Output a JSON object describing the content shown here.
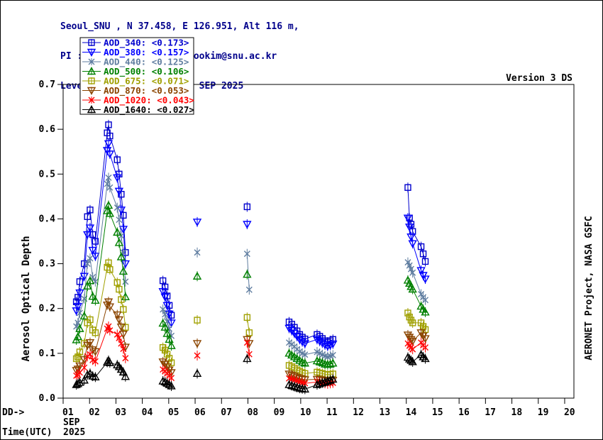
{
  "header": {
    "lines": [
      "Seoul_SNU , N 37.458, E 126.951, Alt 116 m,",
      "PI : Sang-Woo_Kim, sangwookim@snu.ac.kr",
      "Level 1.5 AOD; Data from SEP 2025"
    ],
    "color": "#00008b"
  },
  "chart_data": {
    "type": "scatter",
    "version_label": "Version 3 DS",
    "ylabel": "Aerosol Optical Depth",
    "credit": "AERONET Project, NASA GSFC",
    "x_prefix": "DD->",
    "time_label": "Time(UTC)",
    "month": "SEP",
    "year": "2025",
    "x_ticks": [
      "01",
      "02",
      "03",
      "04",
      "05",
      "06",
      "07",
      "08",
      "09",
      "10",
      "11",
      "12",
      "13",
      "14",
      "15",
      "16",
      "17",
      "18",
      "19",
      "20"
    ],
    "y_ticks": [
      "0.0",
      "0.1",
      "0.2",
      "0.3",
      "0.4",
      "0.5",
      "0.6",
      "0.7"
    ],
    "x_range": [
      1,
      20.35
    ],
    "y_range": [
      0,
      0.7
    ],
    "grid": false,
    "legend_position": "top-left",
    "series": [
      {
        "name": "AOD_340",
        "mean": "0.173",
        "label": "AOD_340: <0.173>",
        "color": "#0000cd",
        "marker": "square"
      },
      {
        "name": "AOD_380",
        "mean": "0.157",
        "label": "AOD_380: <0.157>",
        "color": "#0000ff",
        "marker": "nabla"
      },
      {
        "name": "AOD_440",
        "mean": "0.125",
        "label": "AOD_440: <0.125>",
        "color": "#5f7da0",
        "marker": "x"
      },
      {
        "name": "AOD_500",
        "mean": "0.106",
        "label": "AOD_500: <0.106>",
        "color": "#008000",
        "marker": "triangle"
      },
      {
        "name": "AOD_675",
        "mean": "0.071",
        "label": "AOD_675: <0.071>",
        "color": "#a0a000",
        "marker": "square"
      },
      {
        "name": "AOD_870",
        "mean": "0.053",
        "label": "AOD_870: <0.053>",
        "color": "#8b4500",
        "marker": "nabla"
      },
      {
        "name": "AOD_1020",
        "mean": "0.043",
        "label": "AOD_1020: <0.043>",
        "color": "#ff0000",
        "marker": "x"
      },
      {
        "name": "AOD_1640",
        "mean": "0.027",
        "label": "AOD_1640: <0.027>",
        "color": "#000000",
        "marker": "triangle"
      }
    ],
    "observations": [
      {
        "t": 1.5,
        "aod": [
          0.215,
          0.195,
          0.16,
          0.13,
          0.088,
          0.062,
          0.05,
          0.03
        ]
      },
      {
        "t": 1.56,
        "aod": [
          0.225,
          0.205,
          0.168,
          0.137,
          0.092,
          0.065,
          0.052,
          0.032
        ]
      },
      {
        "t": 1.63,
        "aod": [
          0.26,
          0.235,
          0.19,
          0.155,
          0.103,
          0.072,
          0.057,
          0.035
        ]
      },
      {
        "t": 1.8,
        "aod": [
          0.3,
          0.272,
          0.222,
          0.183,
          0.122,
          0.086,
          0.068,
          0.04
        ]
      },
      {
        "t": 1.92,
        "aod": [
          0.405,
          0.365,
          0.3,
          0.25,
          0.168,
          0.118,
          0.093,
          0.052
        ]
      },
      {
        "t": 2.02,
        "aod": [
          0.42,
          0.38,
          0.312,
          0.262,
          0.175,
          0.124,
          0.098,
          0.055
        ]
      },
      {
        "t": 2.12,
        "aod": [
          0.365,
          0.33,
          0.27,
          0.227,
          0.152,
          0.108,
          0.085,
          0.049
        ]
      },
      {
        "t": 2.22,
        "aod": [
          0.35,
          0.317,
          0.26,
          0.218,
          0.146,
          0.104,
          0.082,
          0.047
        ]
      },
      {
        "t": 2.67,
        "aod": [
          0.592,
          0.553,
          0.478,
          0.418,
          0.292,
          0.208,
          0.155,
          0.08
        ]
      },
      {
        "t": 2.72,
        "aod": [
          0.61,
          0.568,
          0.492,
          0.43,
          0.302,
          0.215,
          0.16,
          0.084
        ]
      },
      {
        "t": 2.77,
        "aod": [
          0.585,
          0.545,
          0.47,
          0.412,
          0.287,
          0.204,
          0.151,
          0.079
        ]
      },
      {
        "t": 3.05,
        "aod": [
          0.532,
          0.492,
          0.425,
          0.37,
          0.258,
          0.186,
          0.142,
          0.074
        ]
      },
      {
        "t": 3.12,
        "aod": [
          0.5,
          0.462,
          0.398,
          0.347,
          0.243,
          0.175,
          0.134,
          0.07
        ]
      },
      {
        "t": 3.2,
        "aod": [
          0.455,
          0.42,
          0.362,
          0.315,
          0.22,
          0.159,
          0.122,
          0.064
        ]
      },
      {
        "t": 3.28,
        "aod": [
          0.408,
          0.377,
          0.325,
          0.283,
          0.198,
          0.143,
          0.11,
          0.058
        ]
      },
      {
        "t": 3.36,
        "aod": [
          0.325,
          0.3,
          0.26,
          0.226,
          0.158,
          0.114,
          0.089,
          0.048
        ]
      },
      {
        "t": 4.78,
        "aod": [
          0.262,
          0.238,
          0.198,
          0.167,
          0.113,
          0.081,
          0.064,
          0.038
        ]
      },
      {
        "t": 4.86,
        "aod": [
          0.248,
          0.226,
          0.187,
          0.158,
          0.107,
          0.076,
          0.06,
          0.036
        ]
      },
      {
        "t": 4.94,
        "aod": [
          0.228,
          0.207,
          0.171,
          0.144,
          0.098,
          0.07,
          0.055,
          0.033
        ]
      },
      {
        "t": 5.02,
        "aod": [
          0.207,
          0.188,
          0.155,
          0.131,
          0.089,
          0.063,
          0.05,
          0.03
        ]
      },
      {
        "t": 5.1,
        "aod": [
          0.185,
          0.168,
          0.139,
          0.117,
          0.079,
          0.057,
          0.045,
          0.027
        ]
      },
      {
        "t": 6.08,
        "aod": [
          null,
          0.393,
          0.325,
          0.272,
          0.174,
          0.122,
          0.095,
          0.055
        ]
      },
      {
        "t": 7.97,
        "aod": [
          0.427,
          0.388,
          0.322,
          0.276,
          0.18,
          0.131,
          0.124,
          0.088
        ]
      },
      {
        "t": 8.05,
        "aod": [
          null,
          null,
          0.242,
          null,
          0.146,
          0.122,
          0.098,
          null
        ]
      },
      {
        "t": 9.56,
        "aod": [
          0.17,
          0.156,
          0.124,
          0.1,
          0.073,
          0.054,
          0.044,
          0.03
        ]
      },
      {
        "t": 9.66,
        "aod": [
          0.165,
          0.151,
          0.12,
          0.096,
          0.07,
          0.051,
          0.042,
          0.028
        ]
      },
      {
        "t": 9.76,
        "aod": [
          0.158,
          0.145,
          0.115,
          0.092,
          0.067,
          0.049,
          0.04,
          0.026
        ]
      },
      {
        "t": 9.86,
        "aod": [
          0.15,
          0.138,
          0.109,
          0.088,
          0.063,
          0.046,
          0.038,
          0.024
        ]
      },
      {
        "t": 9.96,
        "aod": [
          0.142,
          0.131,
          0.104,
          0.084,
          0.06,
          0.044,
          0.036,
          0.022
        ]
      },
      {
        "t": 10.06,
        "aod": [
          0.136,
          0.126,
          0.1,
          0.08,
          0.057,
          0.042,
          0.034,
          0.021
        ]
      },
      {
        "t": 10.16,
        "aod": [
          0.132,
          0.122,
          0.097,
          0.078,
          0.055,
          0.041,
          0.033,
          0.02
        ]
      },
      {
        "t": 10.62,
        "aod": [
          0.142,
          0.131,
          0.103,
          0.083,
          0.058,
          0.042,
          0.036,
          0.03
        ]
      },
      {
        "t": 10.72,
        "aod": [
          0.138,
          0.127,
          0.1,
          0.081,
          0.056,
          0.041,
          0.035,
          0.032
        ]
      },
      {
        "t": 10.82,
        "aod": [
          0.133,
          0.123,
          0.097,
          0.079,
          0.055,
          0.04,
          0.034,
          0.034
        ]
      },
      {
        "t": 10.92,
        "aod": [
          0.128,
          0.119,
          0.094,
          0.076,
          0.053,
          0.039,
          0.033,
          0.036
        ]
      },
      {
        "t": 11.02,
        "aod": [
          0.125,
          0.116,
          0.092,
          0.075,
          0.052,
          0.038,
          0.032,
          0.038
        ]
      },
      {
        "t": 11.12,
        "aod": [
          0.128,
          0.118,
          0.094,
          0.076,
          0.053,
          0.039,
          0.033,
          0.04
        ]
      },
      {
        "t": 11.22,
        "aod": [
          0.131,
          0.121,
          0.096,
          0.078,
          0.054,
          0.04,
          0.034,
          0.042
        ]
      },
      {
        "t": 14.06,
        "aod": [
          0.47,
          0.402,
          0.303,
          0.263,
          0.19,
          0.141,
          0.122,
          0.091
        ]
      },
      {
        "t": 14.12,
        "aod": [
          0.402,
          0.382,
          0.296,
          0.256,
          0.181,
          0.136,
          0.117,
          0.087
        ]
      },
      {
        "t": 14.18,
        "aod": [
          0.388,
          0.36,
          0.288,
          0.249,
          0.174,
          0.131,
          0.113,
          0.084
        ]
      },
      {
        "t": 14.24,
        "aod": [
          0.372,
          0.345,
          0.28,
          0.243,
          0.168,
          0.127,
          0.109,
          0.081
        ]
      },
      {
        "t": 14.56,
        "aod": [
          0.338,
          0.285,
          0.232,
          0.205,
          0.168,
          0.146,
          0.124,
          0.097
        ]
      },
      {
        "t": 14.64,
        "aod": [
          0.322,
          0.274,
          0.225,
          0.198,
          0.16,
          0.139,
          0.118,
          0.092
        ]
      },
      {
        "t": 14.72,
        "aod": [
          0.305,
          0.266,
          0.219,
          0.192,
          0.153,
          0.133,
          0.113,
          0.088
        ]
      }
    ]
  }
}
